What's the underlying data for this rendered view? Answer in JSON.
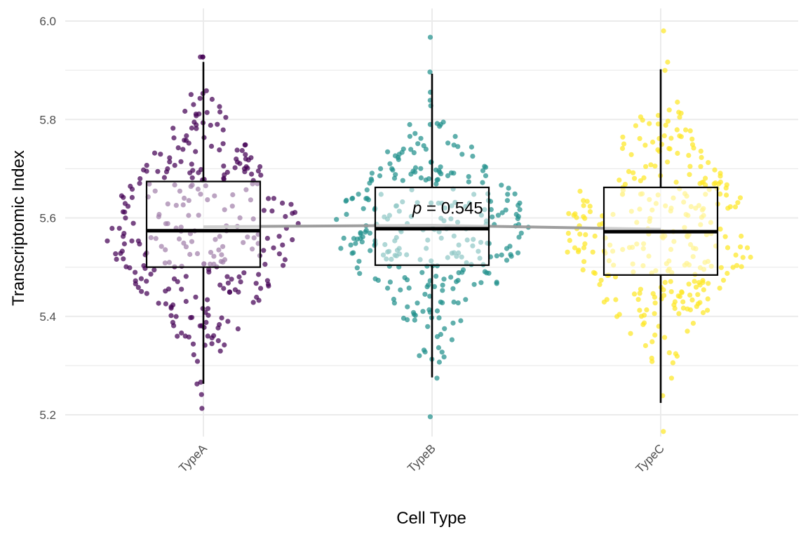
{
  "chart_data": {
    "type": "boxplot-jitter",
    "xlabel": "Cell Type",
    "ylabel": "Transcriptomic Index",
    "ylim": [
      5.13,
      6.02
    ],
    "yticks": [
      5.2,
      5.4,
      5.6,
      5.8,
      6.0
    ],
    "ytick_labels": [
      "5.2",
      "5.4",
      "5.6",
      "5.8",
      "6.0"
    ],
    "categories": [
      "TypeA",
      "TypeB",
      "TypeC"
    ],
    "colors": [
      "#440154",
      "#21908C",
      "#FDE725"
    ],
    "point_counts": [
      300,
      300,
      300
    ],
    "boxes": [
      {
        "name": "TypeA",
        "q1": 5.5,
        "median": 5.574,
        "q3": 5.674,
        "whisker_low": 5.263,
        "whisker_high": 5.917,
        "point_min": 5.213,
        "point_max": 5.927
      },
      {
        "name": "TypeB",
        "q1": 5.504,
        "median": 5.578,
        "q3": 5.662,
        "whisker_low": 5.276,
        "whisker_high": 5.893,
        "point_min": 5.196,
        "point_max": 5.967
      },
      {
        "name": "TypeC",
        "q1": 5.484,
        "median": 5.572,
        "q3": 5.662,
        "whisker_low": 5.224,
        "whisker_high": 5.902,
        "point_min": 5.166,
        "point_max": 5.98
      }
    ],
    "trend_line": {
      "color": "#999999",
      "values": [
        5.582,
        5.585,
        5.577
      ]
    },
    "annotation": {
      "prefix": "p",
      "text": " = 0.545",
      "near_category": "TypeB",
      "y": 5.62
    },
    "grid": true
  }
}
